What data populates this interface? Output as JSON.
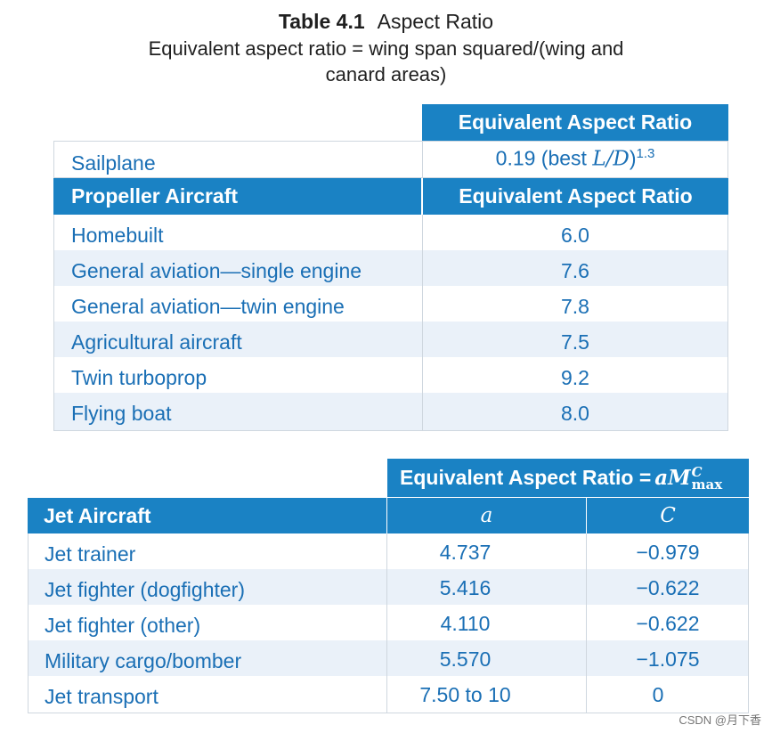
{
  "title": {
    "number": "Table 4.1",
    "name": "Aspect Ratio",
    "subtitle": "Equivalent aspect ratio = wing span squared/(wing and canard areas)"
  },
  "table1": {
    "header_right": "Equivalent Aspect Ratio",
    "sailplane": {
      "label": "Sailplane",
      "value_prefix": "0.19 (best ",
      "value_var": "L/D",
      "value_suffix": ")",
      "value_exp": "1.3"
    },
    "section_header_left": "Propeller Aircraft",
    "section_header_right": "Equivalent Aspect Ratio",
    "rows": [
      {
        "label": "Homebuilt",
        "value": "6.0"
      },
      {
        "label": "General aviation—single engine",
        "value": "7.6"
      },
      {
        "label": "General aviation—twin engine",
        "value": "7.8"
      },
      {
        "label": "Agricultural aircraft",
        "value": "7.5"
      },
      {
        "label": "Twin turboprop",
        "value": "9.2"
      },
      {
        "label": "Flying boat",
        "value": "8.0"
      }
    ]
  },
  "table2": {
    "header_prefix": "Equivalent Aspect Ratio = ",
    "header_formula_a": "aM",
    "header_formula_sup": "C",
    "header_formula_sub": "max",
    "section_header_left": "Jet Aircraft",
    "col_a": "a",
    "col_c": "C",
    "rows": [
      {
        "label": "Jet trainer",
        "a": "4.737",
        "c": "−0.979"
      },
      {
        "label": "Jet fighter (dogfighter)",
        "a": "5.416",
        "c": "−0.622"
      },
      {
        "label": "Jet fighter (other)",
        "a": "4.110",
        "c": "−0.622"
      },
      {
        "label": "Military cargo/bomber",
        "a": "5.570",
        "c": "−1.075"
      },
      {
        "label": "Jet transport",
        "a": "7.50 to 10",
        "c": "0"
      }
    ]
  },
  "watermark": "CSDN @月下香"
}
